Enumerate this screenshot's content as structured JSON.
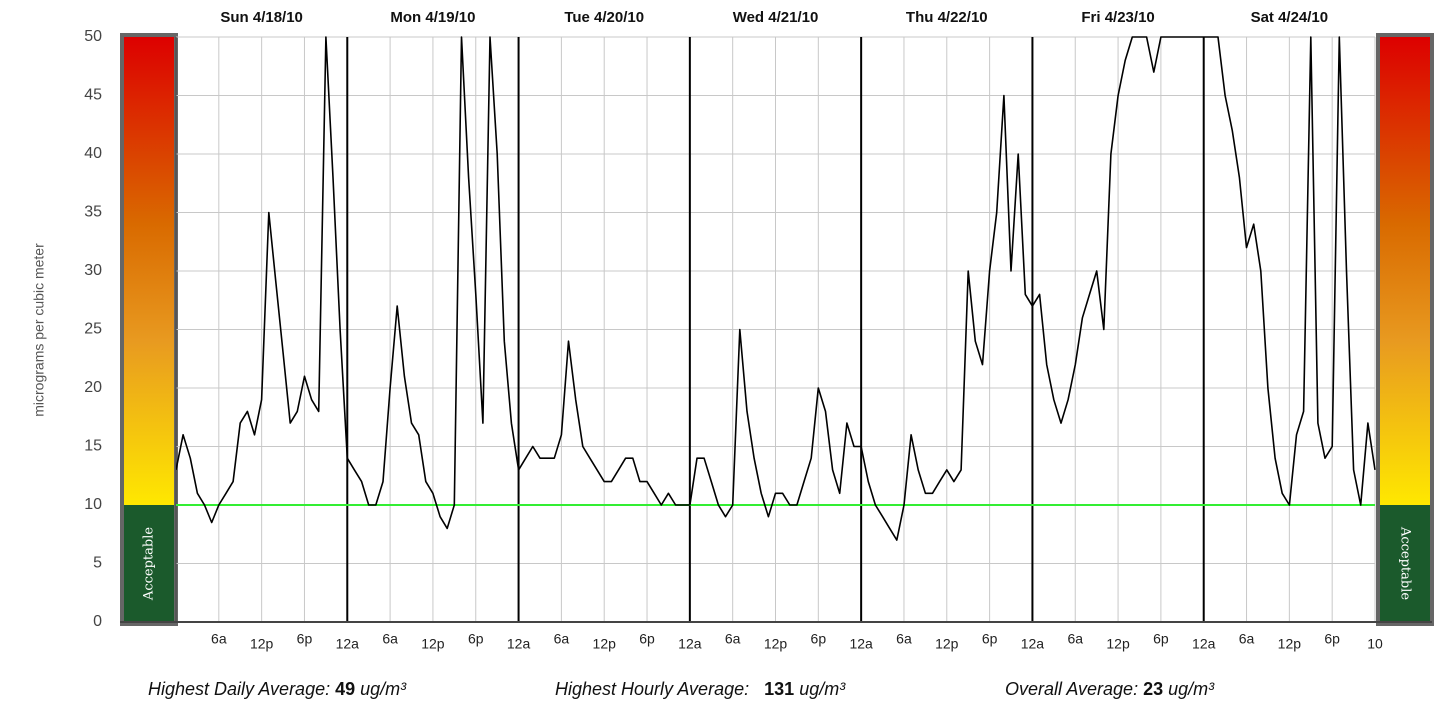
{
  "chart_data": {
    "type": "line",
    "y_label": "micrograms per cubic meter",
    "day_labels": [
      "Sun 4/18/10",
      "Mon 4/19/10",
      "Tue 4/20/10",
      "Wed 4/21/10",
      "Thu 4/22/10",
      "Fri 4/23/10",
      "Sat 4/24/10"
    ],
    "scale_label": "Acceptable",
    "threshold": 10,
    "threshold_color": "#33ee33",
    "xlim": [
      0,
      168
    ],
    "ylim": [
      0,
      50
    ],
    "yticks": [
      0,
      5,
      10,
      15,
      20,
      25,
      30,
      35,
      40,
      45,
      50
    ],
    "xticks": [
      {
        "value": 6,
        "label": "6a"
      },
      {
        "value": 12,
        "label": "12p"
      },
      {
        "value": 18,
        "label": "6p"
      },
      {
        "value": 24,
        "label": "12a"
      },
      {
        "value": 30,
        "label": "6a"
      },
      {
        "value": 36,
        "label": "12p"
      },
      {
        "value": 42,
        "label": "6p"
      },
      {
        "value": 48,
        "label": "12a"
      },
      {
        "value": 54,
        "label": "6a"
      },
      {
        "value": 60,
        "label": "12p"
      },
      {
        "value": 66,
        "label": "6p"
      },
      {
        "value": 72,
        "label": "12a"
      },
      {
        "value": 78,
        "label": "6a"
      },
      {
        "value": 84,
        "label": "12p"
      },
      {
        "value": 90,
        "label": "6p"
      },
      {
        "value": 96,
        "label": "12a"
      },
      {
        "value": 102,
        "label": "6a"
      },
      {
        "value": 108,
        "label": "12p"
      },
      {
        "value": 114,
        "label": "6p"
      },
      {
        "value": 120,
        "label": "12a"
      },
      {
        "value": 126,
        "label": "6a"
      },
      {
        "value": 132,
        "label": "12p"
      },
      {
        "value": 138,
        "label": "6p"
      },
      {
        "value": 144,
        "label": "12a"
      },
      {
        "value": 150,
        "label": "6a"
      },
      {
        "value": 156,
        "label": "12p"
      },
      {
        "value": 162,
        "label": "6p"
      },
      {
        "value": 168,
        "label": "10"
      }
    ],
    "grid": true,
    "x": [
      0,
      1,
      2,
      3,
      4,
      5,
      6,
      7,
      8,
      9,
      10,
      11,
      12,
      13,
      14,
      15,
      16,
      17,
      18,
      19,
      20,
      21,
      22,
      23,
      24,
      25,
      26,
      27,
      28,
      29,
      30,
      31,
      32,
      33,
      34,
      35,
      36,
      37,
      38,
      39,
      40,
      41,
      42,
      43,
      44,
      45,
      46,
      47,
      48,
      49,
      50,
      51,
      52,
      53,
      54,
      55,
      56,
      57,
      58,
      59,
      60,
      61,
      62,
      63,
      64,
      65,
      66,
      67,
      68,
      69,
      70,
      71,
      72,
      73,
      74,
      75,
      76,
      77,
      78,
      79,
      80,
      81,
      82,
      83,
      84,
      85,
      86,
      87,
      88,
      89,
      90,
      91,
      92,
      93,
      94,
      95,
      96,
      97,
      98,
      99,
      100,
      101,
      102,
      103,
      104,
      105,
      106,
      107,
      108,
      109,
      110,
      111,
      112,
      113,
      114,
      115,
      116,
      117,
      118,
      119,
      120,
      121,
      122,
      123,
      124,
      125,
      126,
      127,
      128,
      129,
      130,
      131,
      132,
      133,
      134,
      135,
      136,
      137,
      138,
      139,
      140,
      141,
      142,
      143,
      144,
      145,
      146,
      147,
      148,
      149,
      150,
      151,
      152,
      153,
      154,
      155,
      156,
      157,
      158,
      159,
      160,
      161,
      162,
      163,
      164,
      165,
      166,
      167,
      168
    ],
    "series": [
      {
        "color": "#000000",
        "values": [
          13,
          16,
          14,
          11,
          10,
          8.5,
          10,
          11,
          12,
          17,
          18,
          16,
          19,
          35,
          29,
          23,
          17,
          18,
          21,
          19,
          18,
          50,
          38,
          25,
          14,
          13,
          12,
          10,
          10,
          12,
          20,
          27,
          21,
          17,
          16,
          12,
          11,
          9,
          8,
          10,
          50,
          38,
          28,
          17,
          50,
          40,
          24,
          17,
          13,
          14,
          15,
          14,
          14,
          14,
          16,
          24,
          19,
          15,
          14,
          13,
          12,
          12,
          13,
          14,
          14,
          12,
          12,
          11,
          10,
          11,
          10,
          10,
          10,
          14,
          14,
          12,
          10,
          9,
          10,
          25,
          18,
          14,
          11,
          9,
          11,
          11,
          10,
          10,
          12,
          14,
          20,
          18,
          13,
          11,
          17,
          15,
          15,
          12,
          10,
          9,
          8,
          7,
          10,
          16,
          13,
          11,
          11,
          12,
          13,
          12,
          13,
          30,
          24,
          22,
          30,
          35,
          45,
          30,
          40,
          28,
          27,
          28,
          22,
          19,
          17,
          19,
          22,
          26,
          28,
          30,
          25,
          40,
          45,
          48,
          50,
          50,
          50,
          47,
          50,
          50,
          50,
          50,
          50,
          50,
          50,
          50,
          50,
          45,
          42,
          38,
          32,
          34,
          30,
          20,
          14,
          11,
          10,
          16,
          18,
          50,
          17,
          14,
          15,
          50,
          30,
          13,
          10,
          17,
          13
        ]
      }
    ],
    "stats": [
      {
        "label": "Highest Daily Average:",
        "value": 49,
        "unit": "ug/m³"
      },
      {
        "label": "Highest Hourly Average:",
        "value": 131,
        "unit": "ug/m³"
      },
      {
        "label": "Overall Average:",
        "value": 23,
        "unit": "ug/m³"
      }
    ]
  }
}
